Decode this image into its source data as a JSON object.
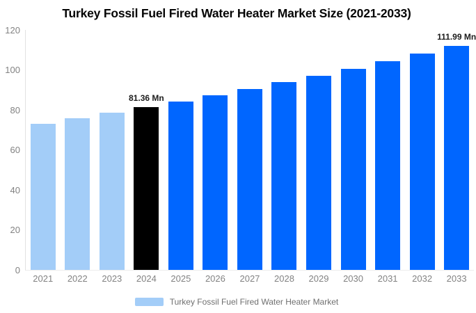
{
  "chart_data": {
    "type": "bar",
    "title": "Turkey Fossil Fuel Fired Water Heater Market Size (2021-2033)",
    "categories": [
      "2021",
      "2022",
      "2023",
      "2024",
      "2025",
      "2026",
      "2027",
      "2028",
      "2029",
      "2030",
      "2031",
      "2032",
      "2033"
    ],
    "values": [
      73.1,
      75.8,
      78.5,
      81.36,
      84.3,
      87.4,
      90.5,
      93.8,
      97.2,
      100.7,
      104.4,
      108.2,
      111.99
    ],
    "unit": "Mn",
    "bar_colors": [
      "#a3cdf8",
      "#a3cdf8",
      "#a3cdf8",
      "#000000",
      "#0066ff",
      "#0066ff",
      "#0066ff",
      "#0066ff",
      "#0066ff",
      "#0066ff",
      "#0066ff",
      "#0066ff",
      "#0066ff"
    ],
    "data_labels": [
      "",
      "",
      "",
      "81.36 Mn",
      "",
      "",
      "",
      "",
      "",
      "",
      "",
      "",
      "111.99 Mn"
    ],
    "xlabel": "",
    "ylabel": "",
    "ylim": [
      0,
      120
    ],
    "yticks": [
      0,
      20,
      40,
      60,
      80,
      100,
      120
    ],
    "grid": false,
    "legend_position": "bottom",
    "legend": {
      "label": "Turkey Fossil Fuel Fired Water Heater Market",
      "swatch_color": "#a3cdf8"
    },
    "colors": {
      "historical": "#a3cdf8",
      "base_year": "#000000",
      "forecast": "#0066ff",
      "axis_text": "#828282",
      "title_text": "#050505"
    }
  }
}
